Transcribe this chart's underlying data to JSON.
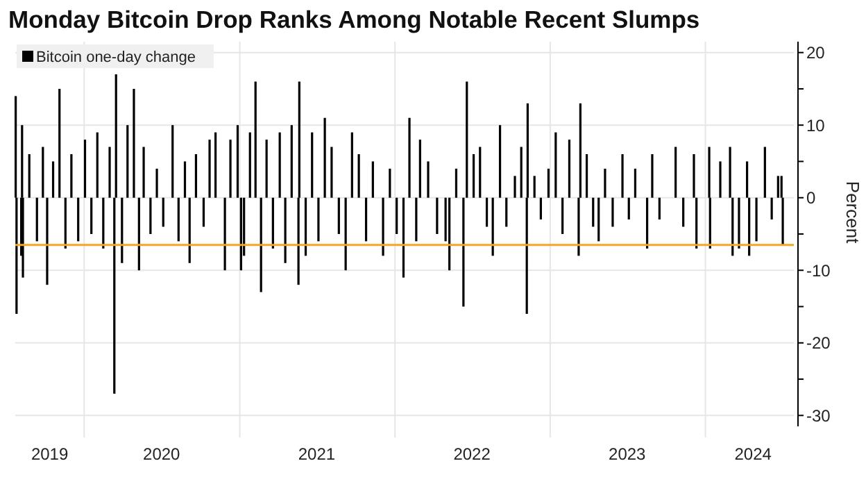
{
  "chart_data": {
    "type": "bar",
    "title": "Monday Bitcoin Drop Ranks Among Notable Recent Slumps",
    "ylabel": "Percent",
    "x": [
      "2019-07-24",
      "2019-07-26",
      "2019-08-06",
      "2019-08-08",
      "2019-08-10",
      "2019-08-25",
      "2019-09-12",
      "2019-09-26",
      "2019-10-06",
      "2019-10-20",
      "2019-11-04",
      "2019-11-18",
      "2019-12-02",
      "2019-12-18",
      "2020-01-03",
      "2020-01-18",
      "2020-02-01",
      "2020-02-15",
      "2020-03-01",
      "2020-03-12",
      "2020-03-16",
      "2020-03-30",
      "2020-04-12",
      "2020-04-27",
      "2020-05-09",
      "2020-05-20",
      "2020-06-05",
      "2020-06-20",
      "2020-07-05",
      "2020-07-27",
      "2020-08-10",
      "2020-08-25",
      "2020-09-05",
      "2020-09-20",
      "2020-10-08",
      "2020-10-22",
      "2020-11-05",
      "2020-11-27",
      "2020-12-10",
      "2020-12-27",
      "2021-01-04",
      "2021-01-11",
      "2021-01-25",
      "2021-02-07",
      "2021-02-20",
      "2021-03-05",
      "2021-03-20",
      "2021-04-05",
      "2021-04-18",
      "2021-05-03",
      "2021-05-19",
      "2021-05-21",
      "2021-06-05",
      "2021-06-20",
      "2021-07-05",
      "2021-07-20",
      "2021-08-05",
      "2021-08-22",
      "2021-09-07",
      "2021-09-22",
      "2021-10-08",
      "2021-10-25",
      "2021-11-10",
      "2021-12-04",
      "2021-12-20",
      "2022-01-05",
      "2022-01-21",
      "2022-02-04",
      "2022-02-20",
      "2022-03-01",
      "2022-03-20",
      "2022-04-10",
      "2022-04-30",
      "2022-05-09",
      "2022-05-25",
      "2022-06-11",
      "2022-06-19",
      "2022-07-05",
      "2022-07-20",
      "2022-08-05",
      "2022-08-19",
      "2022-09-05",
      "2022-09-20",
      "2022-10-10",
      "2022-10-25",
      "2022-11-07",
      "2022-11-09",
      "2022-11-25",
      "2022-12-10",
      "2022-12-28",
      "2023-01-14",
      "2023-01-30",
      "2023-02-15",
      "2023-03-09",
      "2023-03-13",
      "2023-03-28",
      "2023-04-12",
      "2023-04-25",
      "2023-05-10",
      "2023-05-28",
      "2023-06-20",
      "2023-07-05",
      "2023-07-20",
      "2023-08-17",
      "2023-08-29",
      "2023-09-15",
      "2023-10-23",
      "2023-11-10",
      "2023-12-05",
      "2023-12-11",
      "2024-01-10",
      "2024-01-12",
      "2024-02-05",
      "2024-02-28",
      "2024-03-05",
      "2024-03-20",
      "2024-04-08",
      "2024-04-13",
      "2024-04-30",
      "2024-05-20",
      "2024-06-05",
      "2024-06-20",
      "2024-06-28",
      "2024-07-01"
    ],
    "series": [
      {
        "name": "Bitcoin one-day change",
        "color": "#000000",
        "values": [
          14,
          -16,
          -8,
          10,
          -11,
          6,
          -6,
          7,
          -12,
          5,
          15,
          -7,
          6,
          -6,
          8,
          -5,
          9,
          -7,
          7,
          -27,
          17,
          -9,
          10,
          15,
          -10,
          7,
          -5,
          4,
          -4,
          10,
          -6,
          5,
          -9,
          6,
          -4,
          8,
          9,
          -10,
          8,
          10,
          -10,
          -8,
          9,
          16,
          -13,
          8,
          -7,
          9,
          -9,
          10,
          -12,
          16,
          -8,
          9,
          -6,
          11,
          7,
          -5,
          -10,
          9,
          6,
          -6,
          5,
          -8,
          4,
          -5,
          -11,
          11,
          -6,
          8,
          5,
          -5,
          -6,
          -10,
          4,
          -15,
          16,
          6,
          7,
          -4,
          -8,
          10,
          -4,
          3,
          7,
          -16,
          13,
          3,
          -3,
          4,
          9,
          -5,
          8,
          -8,
          13,
          6,
          -4,
          -6,
          4,
          -4,
          6,
          -3,
          4,
          -7,
          6,
          -3,
          7,
          -4,
          6,
          -7,
          7,
          -7,
          5,
          7,
          -8,
          -7,
          5,
          -8,
          -6,
          7,
          -3,
          3,
          3,
          -6.5
        ]
      }
    ],
    "xlim": [
      "2019-07-23",
      "2024-07-27"
    ],
    "xticks": [
      {
        "value": "2019-10-12",
        "label": "2019"
      },
      {
        "value": "2020-01-01",
        "label": null
      },
      {
        "value": "2020-07-01",
        "label": "2020"
      },
      {
        "value": "2021-01-01",
        "label": null
      },
      {
        "value": "2021-07-01",
        "label": "2021"
      },
      {
        "value": "2022-01-01",
        "label": null
      },
      {
        "value": "2022-07-01",
        "label": "2022"
      },
      {
        "value": "2023-01-01",
        "label": null
      },
      {
        "value": "2023-07-01",
        "label": "2023"
      },
      {
        "value": "2024-01-01",
        "label": null
      },
      {
        "value": "2024-04-22",
        "label": "2024"
      }
    ],
    "ylim": [
      -31.5,
      21.5
    ],
    "yticks": [
      20,
      {
        "value": 15,
        "label": null
      },
      10,
      {
        "value": 5,
        "label": null
      },
      0,
      {
        "value": -5,
        "label": null
      },
      -10,
      {
        "value": -15,
        "label": null
      },
      -20,
      {
        "value": -25,
        "label": null
      },
      -30
    ],
    "grid": true,
    "legend": "top left",
    "ref_lines": [
      {
        "axis": "y",
        "value": -6.5,
        "color": "#f5a623"
      }
    ]
  }
}
